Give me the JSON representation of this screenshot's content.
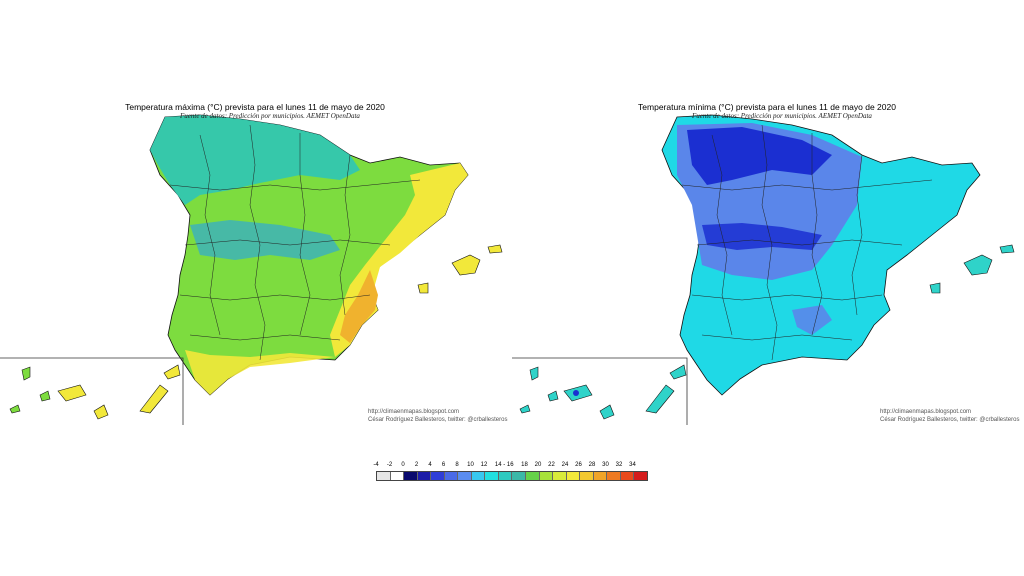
{
  "maps": {
    "max": {
      "title": "Temperatura máxima (°C) prevista para el lunes 11 de mayo de 2020",
      "subtitle": "Fuente de datos: Predicción por municipios. AEMET OpenData",
      "credit_url": "http://climaenmapas.blogspot.com",
      "credit_author": "César Rodríguez Ballesteros, twitter: @crballesteros",
      "palette": {
        "base": "#7ddc3f",
        "coast": "#f2e83a",
        "hot": "#f0b22e",
        "cool": "#33c6b0",
        "cooler": "#3ab0c0"
      }
    },
    "min": {
      "title": "Temperatura mínima (°C) prevista para el lunes 11 de mayo de 2020",
      "subtitle": "Fuente de datos: Predicción por municipios. AEMET OpenData",
      "credit_url": "http://climaenmapas.blogspot.com",
      "credit_author": "César Rodríguez Ballesteros, twitter: @crballesteros",
      "palette": {
        "base": "#1fd9e6",
        "coast": "#2fd3c9",
        "hot": "#2bc7bb",
        "cool": "#5a86ea",
        "cooler": "#1b2fd1"
      }
    }
  },
  "legend": {
    "labels": [
      "-4",
      "-2",
      "0",
      "2",
      "4",
      "6",
      "8",
      "10",
      "12",
      "14 - 16",
      "18",
      "20",
      "22",
      "24",
      "26",
      "28",
      "30",
      "32",
      "34"
    ],
    "colors": [
      "#e6e6e6",
      "#ffffff",
      "#0a0a6e",
      "#1c1ca8",
      "#2f3ed8",
      "#4a6ae8",
      "#5a8cf0",
      "#38c8f0",
      "#22e0e0",
      "#2ecac0",
      "#3cb8a8",
      "#66d24a",
      "#a8e23a",
      "#d8ea3a",
      "#f2e83a",
      "#f2c830",
      "#f0a428",
      "#ee7a22",
      "#e84a1c",
      "#d41c1c"
    ]
  }
}
